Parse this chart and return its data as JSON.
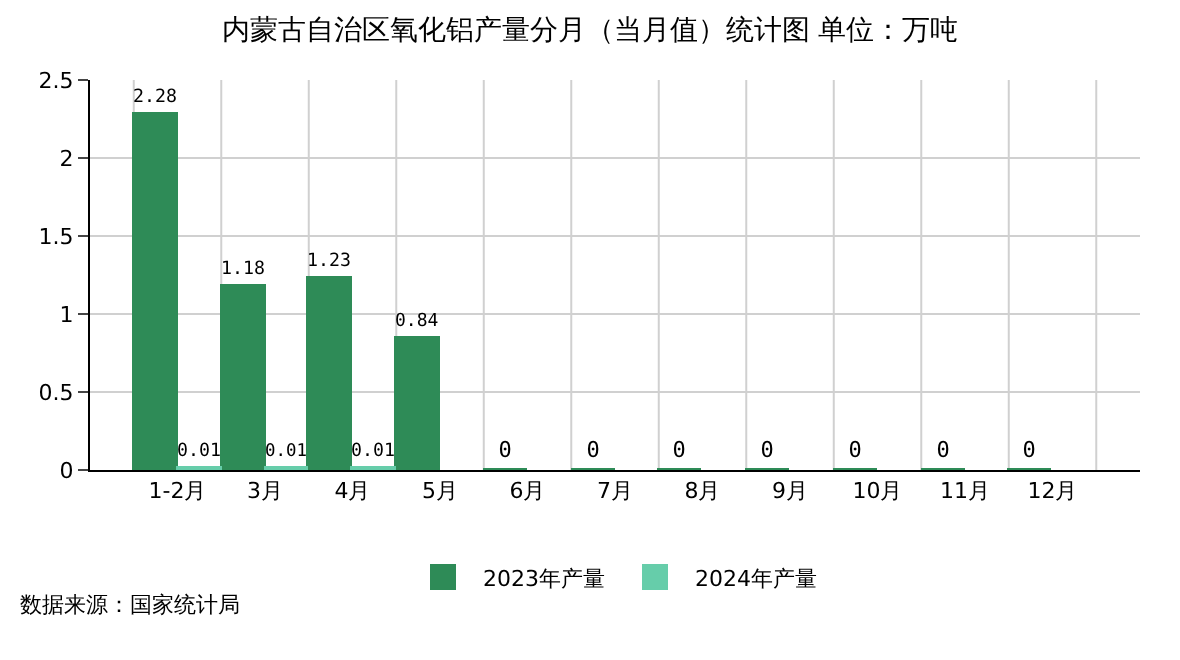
{
  "chart_data": {
    "type": "bar",
    "title": "内蒙古自治区氧化铝产量分月（当月值）统计图 单位：万吨",
    "categories": [
      "1-2月",
      "3月",
      "4月",
      "5月",
      "6月",
      "7月",
      "8月",
      "9月",
      "10月",
      "11月",
      "12月"
    ],
    "series": [
      {
        "name": "2023年产量",
        "color": "#2e8b57",
        "values": [
          2.28,
          1.18,
          1.23,
          0.84,
          0,
          0,
          0,
          0,
          0,
          0,
          0
        ]
      },
      {
        "name": "2024年产量",
        "color": "#66cdaa",
        "values": [
          0.01,
          0.01,
          0.01,
          null,
          null,
          null,
          null,
          null,
          null,
          null,
          null
        ]
      }
    ],
    "ylim": [
      0,
      2.5
    ],
    "yticks": [
      0,
      {
        "value": 0.5,
        "label": "0.5"
      },
      1,
      {
        "value": 1.5,
        "label": "1.5"
      },
      2,
      {
        "value": 2.5,
        "label": "2.5"
      }
    ],
    "grid": true,
    "legend": "bottom",
    "data_labels": true,
    "annotations": [
      "数据来源：国家统计局"
    ]
  }
}
